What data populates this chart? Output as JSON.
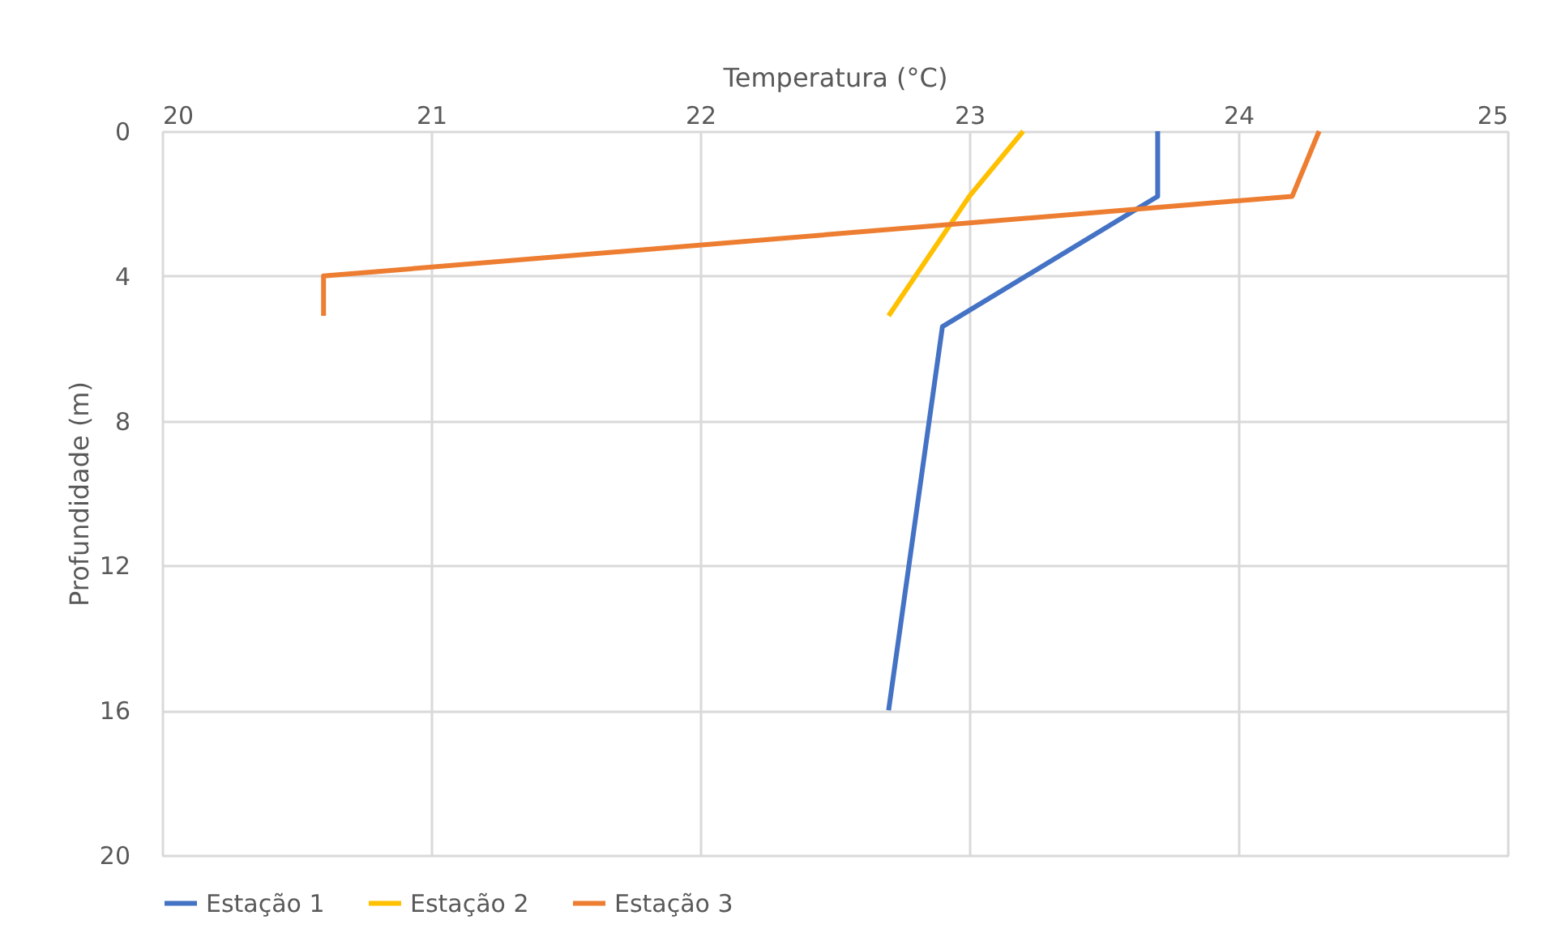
{
  "chart_data": {
    "type": "line",
    "xlabel": "Temperatura (°C)",
    "ylabel": "Profundidade (m)",
    "xlim": [
      20,
      25
    ],
    "xticks": [
      20,
      21,
      22,
      23,
      24,
      25
    ],
    "ylim": [
      20,
      0
    ],
    "yticks": [
      0,
      4,
      8,
      12,
      16,
      20
    ],
    "grid": true,
    "legend": "bottom",
    "marker": "none",
    "line_style": "solid",
    "series": [
      {
        "name": "Estação 1",
        "color": "#4472c4",
        "x": [
          23.7,
          23.7,
          22.9,
          22.7
        ],
        "values": [
          0,
          1.8,
          5.4,
          16
        ]
      },
      {
        "name": "Estação 2",
        "color": "#ffc000",
        "x": [
          23.2,
          23.0,
          22.7
        ],
        "values": [
          0,
          1.8,
          5.1
        ]
      },
      {
        "name": "Estação 3",
        "color": "#ed7d31",
        "x": [
          24.3,
          24.2,
          20.6,
          20.6
        ],
        "values": [
          0,
          1.8,
          4.0,
          5.1
        ]
      }
    ]
  }
}
